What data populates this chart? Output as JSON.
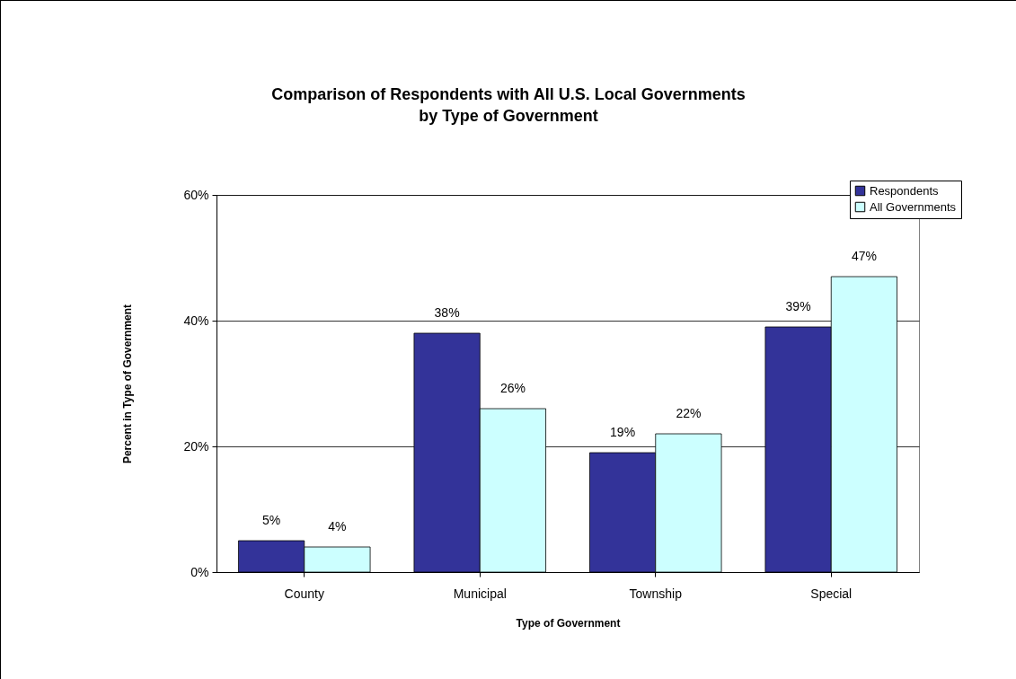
{
  "chart_data": {
    "type": "bar",
    "title": "Comparison of Respondents with All U.S. Local Governments\nby Type of Government",
    "xlabel": "Type of Government",
    "ylabel": "Percent in Type of Government",
    "categories": [
      "County",
      "Municipal",
      "Township",
      "Special"
    ],
    "series": [
      {
        "name": "Respondents",
        "color": "#333399",
        "values": [
          5,
          38,
          19,
          39
        ],
        "value_labels": [
          "5%",
          "38%",
          "19%",
          "39%"
        ]
      },
      {
        "name": "All Governments",
        "color": "#ccffff",
        "values": [
          4,
          26,
          22,
          47
        ],
        "value_labels": [
          "4%",
          "26%",
          "22%",
          "47%"
        ]
      }
    ],
    "ylim": [
      0,
      60
    ],
    "yticks": [
      {
        "value": 0,
        "label": "0%"
      },
      {
        "value": 20,
        "label": "20%"
      },
      {
        "value": 40,
        "label": "40%"
      },
      {
        "value": 60,
        "label": "60%"
      }
    ],
    "grid": "y",
    "legend": "top right"
  }
}
